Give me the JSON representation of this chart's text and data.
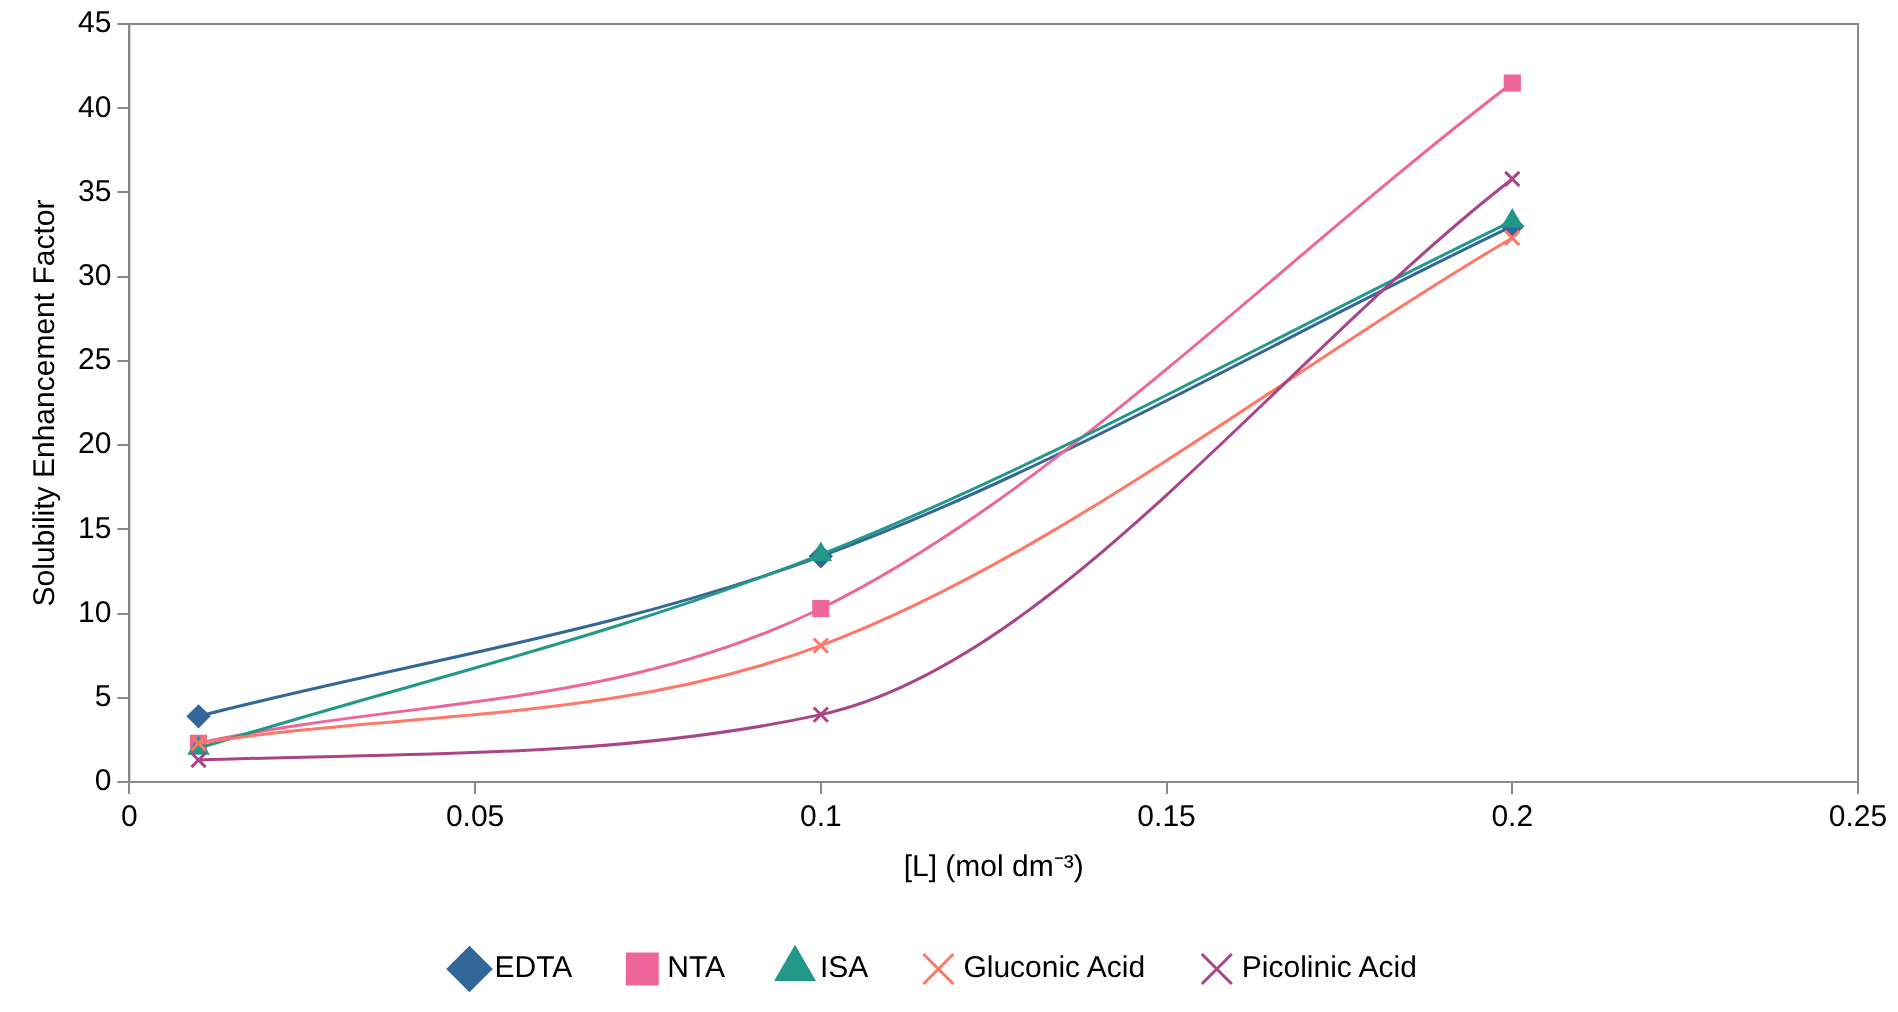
{
  "chart_data": {
    "type": "line",
    "xlabel": "[L] (mol dm⁻³)",
    "ylabel": "Solubility Enhancement Factor",
    "x": [
      0.01,
      0.1,
      0.2
    ],
    "series": [
      {
        "name": "EDTA",
        "color": "#336699",
        "marker": "diamond",
        "values": [
          3.9,
          13.4,
          33.0
        ]
      },
      {
        "name": "NTA",
        "color": "#ee6699",
        "marker": "square",
        "values": [
          2.3,
          10.3,
          41.5
        ]
      },
      {
        "name": "ISA",
        "color": "#229988",
        "marker": "triangle",
        "values": [
          2.0,
          13.5,
          33.3
        ]
      },
      {
        "name": "Gluconic Acid",
        "color": "#ff7766",
        "marker": "cross",
        "values": [
          2.3,
          8.1,
          32.3
        ]
      },
      {
        "name": "Picolinic Acid",
        "color": "#aa4488",
        "marker": "cross",
        "values": [
          1.3,
          4.0,
          35.8
        ]
      }
    ],
    "xlim": [
      0,
      0.25
    ],
    "xticks": [
      0,
      0.05,
      0.1,
      0.15,
      0.2,
      0.25
    ],
    "ylim": [
      0,
      45
    ],
    "yticks": [
      0,
      5,
      10,
      15,
      20,
      25,
      30,
      35,
      40,
      45
    ],
    "grid": false,
    "legend": "bottom"
  }
}
